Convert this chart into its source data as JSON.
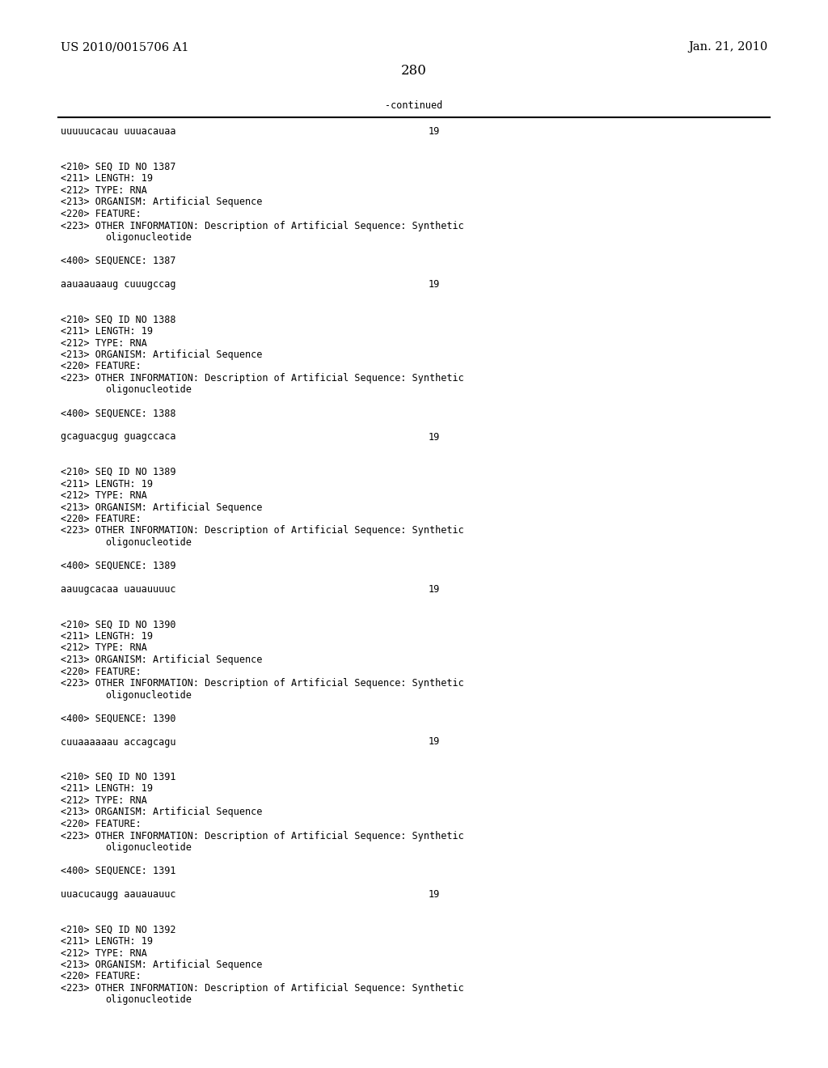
{
  "background_color": "#ffffff",
  "header_left": "US 2010/0015706 A1",
  "header_right": "Jan. 21, 2010",
  "page_number": "280",
  "continued_label": "-continued",
  "monospace_font_size": 8.5,
  "header_font_size": 10.5,
  "page_num_font_size": 12,
  "content": [
    {
      "type": "sequence_line",
      "text": "uuuuucacau uuuacauaa",
      "number": "19"
    },
    {
      "type": "blank"
    },
    {
      "type": "blank"
    },
    {
      "type": "meta",
      "text": "<210> SEQ ID NO 1387"
    },
    {
      "type": "meta",
      "text": "<211> LENGTH: 19"
    },
    {
      "type": "meta",
      "text": "<212> TYPE: RNA"
    },
    {
      "type": "meta",
      "text": "<213> ORGANISM: Artificial Sequence"
    },
    {
      "type": "meta",
      "text": "<220> FEATURE:"
    },
    {
      "type": "meta",
      "text": "<223> OTHER INFORMATION: Description of Artificial Sequence: Synthetic"
    },
    {
      "type": "meta_indent",
      "text": "oligonucleotide"
    },
    {
      "type": "blank"
    },
    {
      "type": "meta",
      "text": "<400> SEQUENCE: 1387"
    },
    {
      "type": "blank"
    },
    {
      "type": "sequence_line",
      "text": "aauaauaaug cuuugccag",
      "number": "19"
    },
    {
      "type": "blank"
    },
    {
      "type": "blank"
    },
    {
      "type": "meta",
      "text": "<210> SEQ ID NO 1388"
    },
    {
      "type": "meta",
      "text": "<211> LENGTH: 19"
    },
    {
      "type": "meta",
      "text": "<212> TYPE: RNA"
    },
    {
      "type": "meta",
      "text": "<213> ORGANISM: Artificial Sequence"
    },
    {
      "type": "meta",
      "text": "<220> FEATURE:"
    },
    {
      "type": "meta",
      "text": "<223> OTHER INFORMATION: Description of Artificial Sequence: Synthetic"
    },
    {
      "type": "meta_indent",
      "text": "oligonucleotide"
    },
    {
      "type": "blank"
    },
    {
      "type": "meta",
      "text": "<400> SEQUENCE: 1388"
    },
    {
      "type": "blank"
    },
    {
      "type": "sequence_line",
      "text": "gcaguacgug guagccaca",
      "number": "19"
    },
    {
      "type": "blank"
    },
    {
      "type": "blank"
    },
    {
      "type": "meta",
      "text": "<210> SEQ ID NO 1389"
    },
    {
      "type": "meta",
      "text": "<211> LENGTH: 19"
    },
    {
      "type": "meta",
      "text": "<212> TYPE: RNA"
    },
    {
      "type": "meta",
      "text": "<213> ORGANISM: Artificial Sequence"
    },
    {
      "type": "meta",
      "text": "<220> FEATURE:"
    },
    {
      "type": "meta",
      "text": "<223> OTHER INFORMATION: Description of Artificial Sequence: Synthetic"
    },
    {
      "type": "meta_indent",
      "text": "oligonucleotide"
    },
    {
      "type": "blank"
    },
    {
      "type": "meta",
      "text": "<400> SEQUENCE: 1389"
    },
    {
      "type": "blank"
    },
    {
      "type": "sequence_line",
      "text": "aauugcacaa uauauuuuc",
      "number": "19"
    },
    {
      "type": "blank"
    },
    {
      "type": "blank"
    },
    {
      "type": "meta",
      "text": "<210> SEQ ID NO 1390"
    },
    {
      "type": "meta",
      "text": "<211> LENGTH: 19"
    },
    {
      "type": "meta",
      "text": "<212> TYPE: RNA"
    },
    {
      "type": "meta",
      "text": "<213> ORGANISM: Artificial Sequence"
    },
    {
      "type": "meta",
      "text": "<220> FEATURE:"
    },
    {
      "type": "meta",
      "text": "<223> OTHER INFORMATION: Description of Artificial Sequence: Synthetic"
    },
    {
      "type": "meta_indent",
      "text": "oligonucleotide"
    },
    {
      "type": "blank"
    },
    {
      "type": "meta",
      "text": "<400> SEQUENCE: 1390"
    },
    {
      "type": "blank"
    },
    {
      "type": "sequence_line",
      "text": "cuuaaaaaau accagcagu",
      "number": "19"
    },
    {
      "type": "blank"
    },
    {
      "type": "blank"
    },
    {
      "type": "meta",
      "text": "<210> SEQ ID NO 1391"
    },
    {
      "type": "meta",
      "text": "<211> LENGTH: 19"
    },
    {
      "type": "meta",
      "text": "<212> TYPE: RNA"
    },
    {
      "type": "meta",
      "text": "<213> ORGANISM: Artificial Sequence"
    },
    {
      "type": "meta",
      "text": "<220> FEATURE:"
    },
    {
      "type": "meta",
      "text": "<223> OTHER INFORMATION: Description of Artificial Sequence: Synthetic"
    },
    {
      "type": "meta_indent",
      "text": "oligonucleotide"
    },
    {
      "type": "blank"
    },
    {
      "type": "meta",
      "text": "<400> SEQUENCE: 1391"
    },
    {
      "type": "blank"
    },
    {
      "type": "sequence_line",
      "text": "uuacucaugg aauauauuc",
      "number": "19"
    },
    {
      "type": "blank"
    },
    {
      "type": "blank"
    },
    {
      "type": "meta",
      "text": "<210> SEQ ID NO 1392"
    },
    {
      "type": "meta",
      "text": "<211> LENGTH: 19"
    },
    {
      "type": "meta",
      "text": "<212> TYPE: RNA"
    },
    {
      "type": "meta",
      "text": "<213> ORGANISM: Artificial Sequence"
    },
    {
      "type": "meta",
      "text": "<220> FEATURE:"
    },
    {
      "type": "meta",
      "text": "<223> OTHER INFORMATION: Description of Artificial Sequence: Synthetic"
    },
    {
      "type": "meta_indent",
      "text": "oligonucleotide"
    }
  ]
}
